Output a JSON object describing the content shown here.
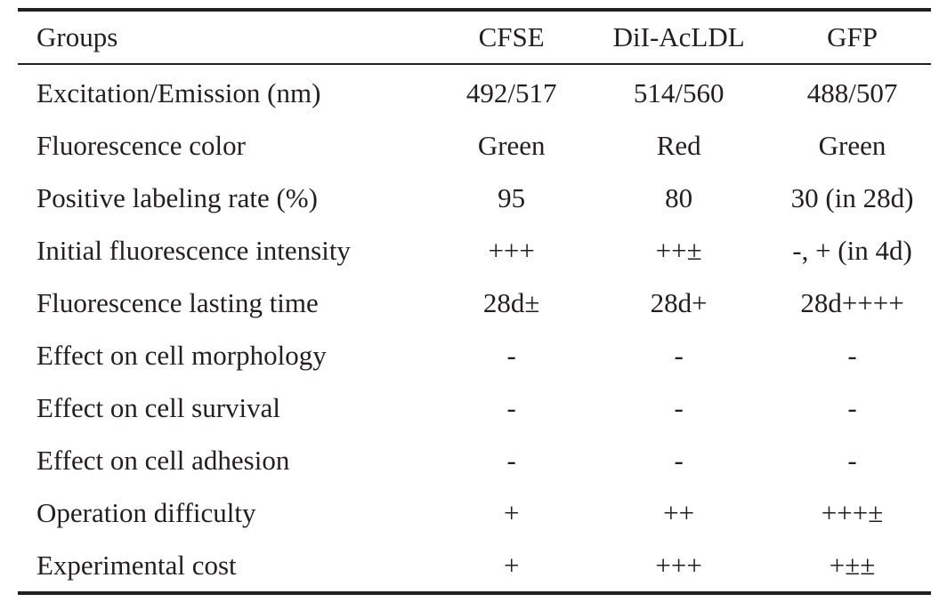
{
  "table": {
    "headers": [
      "Groups",
      "CFSE",
      "DiI-AcLDL",
      "GFP"
    ],
    "rows": [
      [
        "Excitation/Emission (nm)",
        "492/517",
        "514/560",
        "488/507"
      ],
      [
        "Fluorescence color",
        "Green",
        "Red",
        "Green"
      ],
      [
        "Positive labeling rate (%)",
        "95",
        "80",
        "30 (in 28d)"
      ],
      [
        "Initial fluorescence intensity",
        "+++",
        "++±",
        "-, + (in 4d)"
      ],
      [
        "Fluorescence lasting time",
        "28d±",
        "28d+",
        "28d++++"
      ],
      [
        "Effect on cell morphology",
        "-",
        "-",
        "-"
      ],
      [
        "Effect on cell survival",
        "-",
        "-",
        "-"
      ],
      [
        "Effect on cell adhesion",
        "-",
        "-",
        "-"
      ],
      [
        "Operation difficulty",
        "+",
        "++",
        "+++±"
      ],
      [
        "Experimental cost",
        "+",
        "+++",
        "+±±"
      ]
    ]
  }
}
